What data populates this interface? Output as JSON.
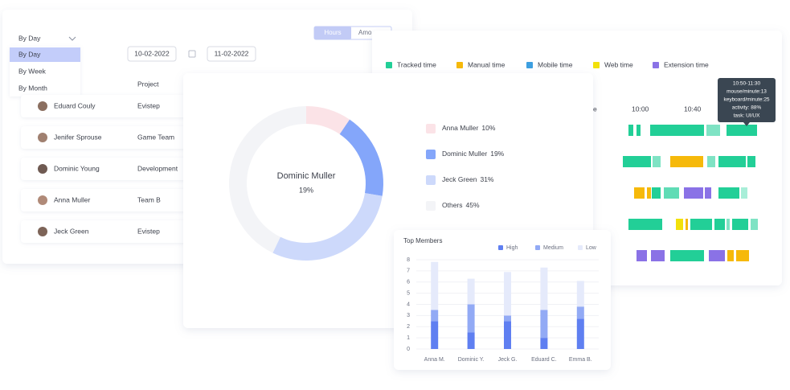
{
  "filters": {
    "period_selected": "By Day",
    "period_options": [
      "By Day",
      "By Week",
      "By Month"
    ],
    "units": [
      "Hours",
      "Amo"
    ],
    "date_from": "10-02-2022",
    "date_to": "11-02-2022"
  },
  "table": {
    "header": "Project",
    "rows": [
      [
        "Eduard Couly",
        "Evistep"
      ],
      [
        "Jenifer Sprouse",
        "Game Team"
      ],
      [
        "Dominic Young",
        "Development"
      ],
      [
        "Anna Muller",
        "Team B"
      ],
      [
        "Jeck Green",
        "Evistep"
      ]
    ]
  },
  "timeline": {
    "legend": [
      {
        "name": "Tracked time",
        "color": "#22cf97"
      },
      {
        "name": "Manual time",
        "color": "#f6b90a"
      },
      {
        "name": "Mobile time",
        "color": "#3d9fe0"
      },
      {
        "name": "Web time",
        "color": "#f2e10b"
      },
      {
        "name": "Extension time",
        "color": "#8a72e6"
      }
    ],
    "times": [
      "e",
      "10:00",
      "10:40"
    ],
    "tooltip": [
      "10:50-11:30",
      "mouse/minute:13",
      "keyboard/minute:25",
      "activity: 88%",
      "task: UI/UX"
    ]
  },
  "chart_data": [
    {
      "type": "pie",
      "categories": [
        "Anna Muller",
        "Dominic Muller",
        "Jeck Green",
        "Others"
      ],
      "values": [
        10,
        19,
        31,
        45
      ],
      "value_labels": [
        "10%",
        "19%",
        "31%",
        "45%"
      ],
      "colors": [
        "#fbe3e7",
        "#84a6fa",
        "#cdd9fb",
        "#f3f4f7"
      ]
    },
    {
      "type": "bar",
      "stacked": true,
      "title": "Top Members",
      "categories": [
        "Anna M.",
        "Dominic Y.",
        "Jeck G.",
        "Eduard C.",
        "Emma B."
      ],
      "series": [
        {
          "name": "High",
          "color": "#5f7ff1",
          "values": [
            2.5,
            1.5,
            2.5,
            1,
            2.7
          ]
        },
        {
          "name": "Medium",
          "color": "#92aaf5",
          "values": [
            1,
            2.5,
            0.5,
            2.5,
            1.1
          ]
        },
        {
          "name": "Low",
          "color": "#e5eafb",
          "values": [
            4.3,
            2.3,
            3.9,
            3.8,
            2.3
          ]
        }
      ],
      "ylim": [
        0,
        8
      ],
      "yticks": [
        0,
        1,
        2,
        3,
        4,
        5,
        6,
        7,
        8
      ],
      "grid": true
    }
  ]
}
